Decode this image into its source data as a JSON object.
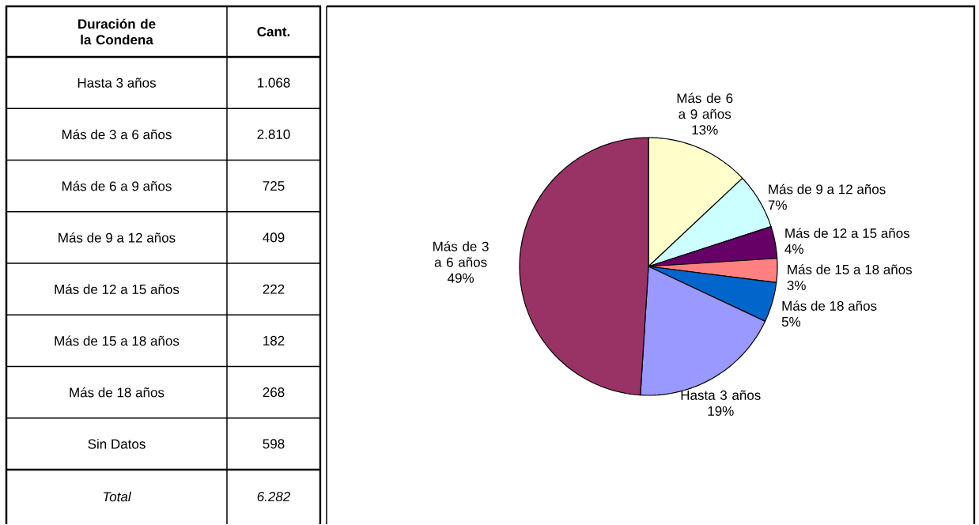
{
  "chart_data": [
    {
      "type": "other",
      "annotations": [
        "Duración de la Condena",
        "Cant.",
        "Total",
        "6.282"
      ],
      "categories": [
        "Hasta 3 años",
        "Más de 3 a 6 años",
        "Más de 6 a 9 años",
        "Más de 9 a 12 años",
        "Más de 12 a 15 años",
        "Más de 15 a 18 años",
        "Más de 18 años",
        "Sin Datos"
      ],
      "values": [
        1068,
        2810,
        725,
        409,
        222,
        182,
        268,
        598
      ],
      "value_labels": [
        "1.068",
        "2.810",
        "725",
        "409",
        "222",
        "182",
        "268",
        "598"
      ]
    },
    {
      "type": "pie",
      "categories": [
        "Más de 6 a 9 años",
        "Más de 9 a 12 años",
        "Más de 12 a 15 años",
        "Más de 15 a 18 años",
        "Más de 18 años",
        "Hasta 3 años",
        "Más de 3 a 6 años"
      ],
      "values": [
        13,
        7,
        4,
        3,
        5,
        19,
        49
      ],
      "colors": [
        "#ffffcc",
        "#ccffff",
        "#660066",
        "#ff8080",
        "#0066cc",
        "#9999ff",
        "#993366"
      ],
      "value_labels": [
        "13%",
        "7%",
        "4%",
        "3%",
        "5%",
        "19%",
        "49%"
      ]
    }
  ]
}
